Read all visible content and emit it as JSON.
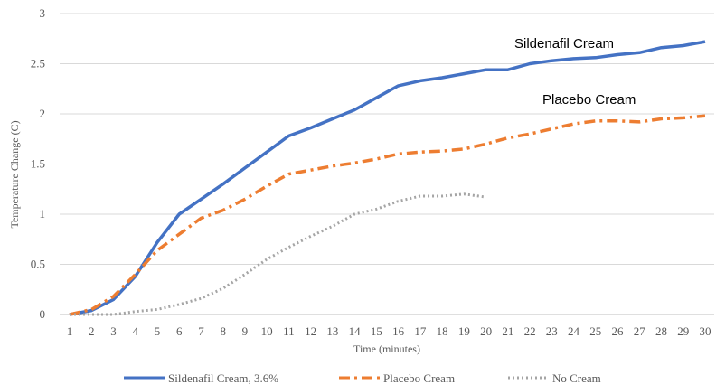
{
  "chart_data": {
    "type": "line",
    "xlabel": "Time (minutes)",
    "ylabel": "Temperature Change (C)",
    "x": [
      1,
      2,
      3,
      4,
      5,
      6,
      7,
      8,
      9,
      10,
      11,
      12,
      13,
      14,
      15,
      16,
      17,
      18,
      19,
      20,
      21,
      22,
      23,
      24,
      25,
      26,
      27,
      28,
      29,
      30
    ],
    "xticks": [
      "1",
      "2",
      "3",
      "4",
      "5",
      "6",
      "7",
      "8",
      "9",
      "10",
      "11",
      "12",
      "13",
      "14",
      "15",
      "16",
      "17",
      "18",
      "19",
      "20",
      "21",
      "22",
      "23",
      "24",
      "25",
      "26",
      "27",
      "28",
      "29",
      "30"
    ],
    "ylim": [
      0,
      3
    ],
    "yticks": [
      "0",
      "0.5",
      "1",
      "1.5",
      "2",
      "2.5",
      "3"
    ],
    "grid": "horizontal",
    "legend_position": "bottom",
    "series": [
      {
        "name": "Sildenafil Cream, 3.6%",
        "color": "#4472C4",
        "style": "solid",
        "values": [
          0,
          0.04,
          0.15,
          0.38,
          0.72,
          1.0,
          1.15,
          1.3,
          1.46,
          1.62,
          1.78,
          1.86,
          1.95,
          2.04,
          2.16,
          2.28,
          2.33,
          2.36,
          2.4,
          2.44,
          2.44,
          2.5,
          2.53,
          2.55,
          2.56,
          2.59,
          2.61,
          2.66,
          2.68,
          2.72
        ]
      },
      {
        "name": "Placebo Cream",
        "color": "#ED7D31",
        "style": "dashdot",
        "values": [
          0,
          0.05,
          0.18,
          0.4,
          0.64,
          0.8,
          0.96,
          1.04,
          1.15,
          1.28,
          1.4,
          1.44,
          1.48,
          1.51,
          1.55,
          1.6,
          1.62,
          1.63,
          1.65,
          1.7,
          1.76,
          1.8,
          1.85,
          1.9,
          1.93,
          1.93,
          1.92,
          1.95,
          1.96,
          1.98
        ]
      },
      {
        "name": "No Cream",
        "color": "#A5A5A5",
        "style": "dotted",
        "values": [
          0,
          0,
          0,
          0.03,
          0.05,
          0.1,
          0.16,
          0.26,
          0.4,
          0.55,
          0.67,
          0.78,
          0.88,
          1.0,
          1.05,
          1.13,
          1.18,
          1.18,
          1.2,
          1.17,
          null,
          null,
          null,
          null,
          null,
          null,
          null,
          null,
          null,
          null
        ]
      }
    ],
    "annotations": [
      {
        "text": "Sildenafil Cream",
        "series": 0
      },
      {
        "text": "Placebo  Cream",
        "series": 1
      }
    ]
  }
}
